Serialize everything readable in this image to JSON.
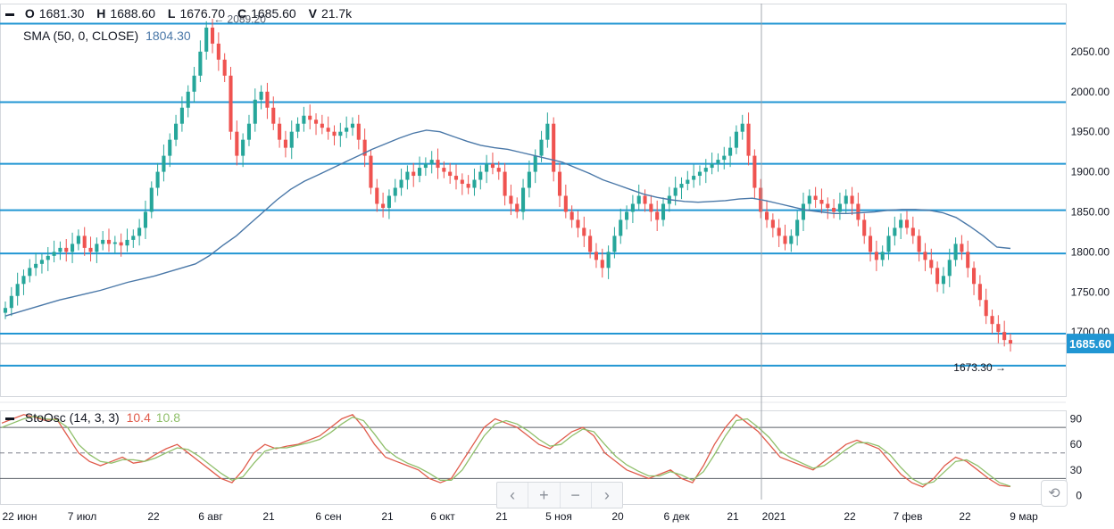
{
  "header": {
    "o_label": "O",
    "o": "1681.30",
    "h_label": "H",
    "h": "1688.60",
    "l_label": "L",
    "l": "1676.70",
    "c_label": "C",
    "c": "1685.60",
    "v_label": "V",
    "v": "21.7k"
  },
  "sma_legend": {
    "label": "SMA (50, 0, CLOSE)",
    "value": "1804.30"
  },
  "sto_legend": {
    "label": "StoOsc (14, 3, 3)",
    "k": "10.4",
    "d": "10.8"
  },
  "annotations": {
    "high_marker": "← 2089.20",
    "low_marker": "1673.30 →"
  },
  "last_price": "1685.60",
  "nav": {
    "back": "‹",
    "zoom_in": "+",
    "zoom_out": "−",
    "forward": "›",
    "reset": "⟲"
  },
  "colors": {
    "up": "#26a69a",
    "down": "#ef5350",
    "sma": "#4a78a8",
    "level": "#2196d3",
    "last_price_bg": "#2196d3",
    "sto_k": "#e05b4b",
    "sto_d": "#8fbf6a",
    "axis_text": "#131722"
  },
  "chart_data": [
    {
      "type": "candlestick",
      "name": "price",
      "ylim": [
        1620,
        2110
      ],
      "y_ticks": [
        1700,
        1750,
        1800,
        1850,
        1900,
        1950,
        2000,
        2050
      ],
      "y_tick_labels": [
        "1700.00",
        "1750.00",
        "1800.00",
        "1850.00",
        "1900.00",
        "1950.00",
        "2000.00",
        "2050.00"
      ],
      "x_ticks": [
        "22 июн",
        "7 июл",
        "22",
        "6 авг",
        "21",
        "6 сен",
        "21",
        "6 окт",
        "21",
        "5 ноя",
        "20",
        "6 дек",
        "21",
        "2021",
        "22",
        "7 фев",
        "22",
        "9 мар"
      ],
      "horizontal_levels": [
        2085,
        1987,
        1910,
        1852,
        1798,
        1698,
        1658
      ],
      "high": 2089.2,
      "low": 1673.3,
      "last": 1685.6,
      "close_series": [
        1730,
        1745,
        1760,
        1770,
        1780,
        1785,
        1790,
        1795,
        1800,
        1805,
        1800,
        1810,
        1820,
        1805,
        1800,
        1810,
        1815,
        1810,
        1812,
        1808,
        1815,
        1820,
        1830,
        1850,
        1880,
        1900,
        1920,
        1940,
        1960,
        1980,
        2000,
        2020,
        2050,
        2080,
        2060,
        2040,
        2020,
        1950,
        1920,
        1940,
        1960,
        1990,
        2000,
        1980,
        1960,
        1940,
        1930,
        1950,
        1960,
        1970,
        1965,
        1960,
        1955,
        1950,
        1945,
        1950,
        1955,
        1960,
        1940,
        1920,
        1880,
        1860,
        1855,
        1870,
        1880,
        1890,
        1900,
        1895,
        1905,
        1910,
        1915,
        1905,
        1900,
        1895,
        1890,
        1885,
        1880,
        1890,
        1900,
        1910,
        1905,
        1900,
        1870,
        1860,
        1850,
        1880,
        1900,
        1920,
        1940,
        1960,
        1900,
        1870,
        1850,
        1840,
        1830,
        1820,
        1800,
        1790,
        1780,
        1800,
        1820,
        1840,
        1850,
        1860,
        1870,
        1860,
        1850,
        1840,
        1860,
        1870,
        1880,
        1885,
        1890,
        1895,
        1900,
        1905,
        1910,
        1915,
        1920,
        1930,
        1950,
        1960,
        1920,
        1880,
        1850,
        1840,
        1830,
        1820,
        1810,
        1820,
        1840,
        1860,
        1870,
        1865,
        1860,
        1855,
        1850,
        1860,
        1870,
        1860,
        1840,
        1820,
        1800,
        1790,
        1800,
        1820,
        1830,
        1840,
        1830,
        1820,
        1800,
        1790,
        1780,
        1760,
        1770,
        1790,
        1810,
        1800,
        1780,
        1760,
        1740,
        1720,
        1710,
        1700,
        1690,
        1685.6
      ],
      "sma_series": [
        1720,
        1725,
        1730,
        1735,
        1740,
        1744,
        1748,
        1752,
        1757,
        1762,
        1766,
        1770,
        1775,
        1780,
        1785,
        1795,
        1808,
        1820,
        1835,
        1850,
        1865,
        1878,
        1888,
        1896,
        1904,
        1912,
        1920,
        1928,
        1935,
        1942,
        1948,
        1952,
        1950,
        1944,
        1938,
        1933,
        1930,
        1928,
        1924,
        1920,
        1916,
        1912,
        1905,
        1898,
        1890,
        1884,
        1878,
        1872,
        1868,
        1865,
        1863,
        1862,
        1863,
        1864,
        1866,
        1867,
        1864,
        1860,
        1856,
        1852,
        1850,
        1848,
        1848,
        1849,
        1850,
        1852,
        1853,
        1853,
        1852,
        1849,
        1843,
        1832,
        1820,
        1806,
        1804.3
      ]
    },
    {
      "type": "line",
      "name": "stochastic",
      "ylim": [
        -10,
        100
      ],
      "y_ticks": [
        0,
        30,
        60,
        90
      ],
      "bands": [
        80,
        50,
        20
      ],
      "series": [
        {
          "name": "%K",
          "values": [
            85,
            90,
            95,
            92,
            88,
            90,
            70,
            50,
            40,
            35,
            40,
            45,
            38,
            40,
            48,
            55,
            60,
            50,
            40,
            30,
            20,
            15,
            30,
            50,
            60,
            55,
            58,
            60,
            65,
            70,
            80,
            90,
            95,
            80,
            60,
            45,
            40,
            35,
            30,
            20,
            15,
            20,
            40,
            60,
            80,
            90,
            85,
            80,
            70,
            60,
            55,
            65,
            75,
            80,
            70,
            50,
            40,
            30,
            25,
            20,
            25,
            30,
            20,
            15,
            35,
            60,
            80,
            95,
            85,
            75,
            60,
            45,
            40,
            35,
            30,
            40,
            50,
            60,
            65,
            60,
            55,
            40,
            25,
            15,
            10,
            20,
            35,
            45,
            40,
            30,
            20,
            12,
            10.4
          ]
        },
        {
          "name": "%D",
          "values": [
            80,
            85,
            90,
            93,
            90,
            89,
            80,
            60,
            48,
            40,
            38,
            42,
            42,
            40,
            44,
            50,
            56,
            54,
            46,
            36,
            26,
            18,
            22,
            38,
            52,
            56,
            56,
            59,
            62,
            66,
            74,
            84,
            92,
            88,
            72,
            55,
            45,
            38,
            33,
            26,
            18,
            18,
            30,
            50,
            70,
            84,
            88,
            84,
            76,
            66,
            58,
            60,
            70,
            78,
            75,
            60,
            46,
            36,
            29,
            23,
            23,
            28,
            24,
            18,
            28,
            48,
            70,
            88,
            90,
            80,
            68,
            52,
            44,
            38,
            32,
            35,
            44,
            54,
            62,
            62,
            58,
            48,
            33,
            20,
            13,
            16,
            28,
            40,
            42,
            35,
            25,
            15,
            10.8
          ]
        }
      ]
    }
  ]
}
